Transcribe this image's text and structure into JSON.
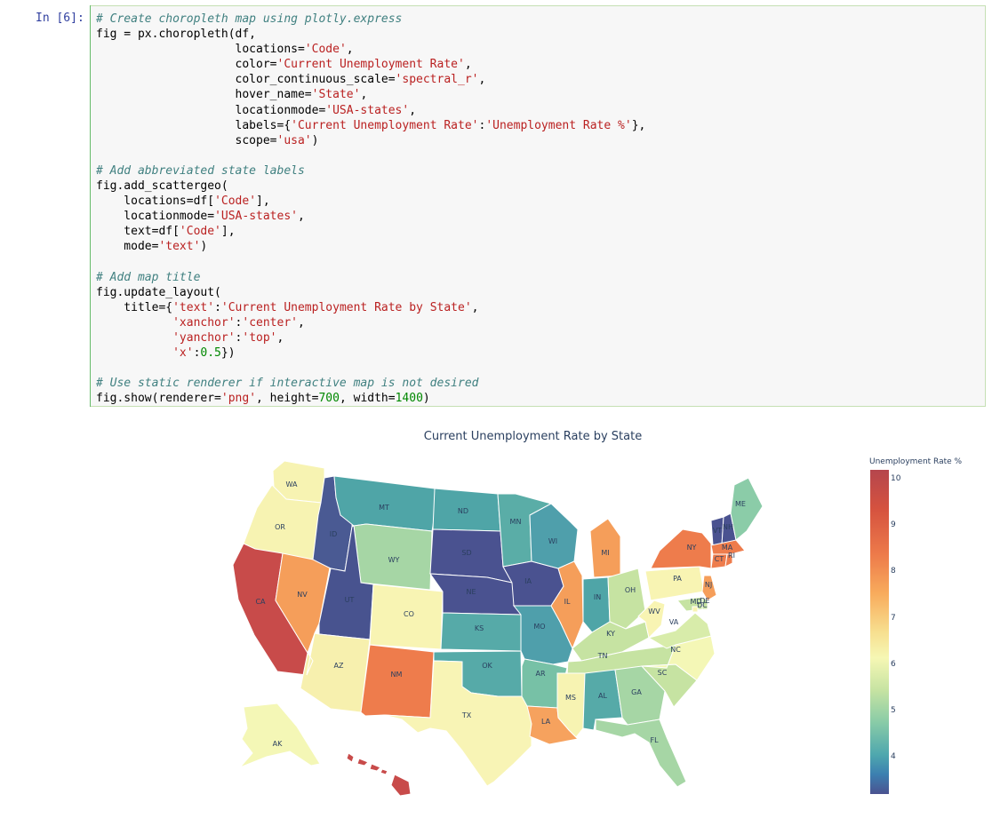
{
  "cell": {
    "prompt": "In [6]:",
    "lines": [
      {
        "t": "cm",
        "v": "# Create choropleth map using plotly.express"
      },
      {
        "t": "code",
        "v": "fig = px.choropleth(df,"
      },
      {
        "t": "code",
        "v": "                    locations='Code',"
      },
      {
        "t": "code",
        "v": "                    color='Current Unemployment Rate',"
      },
      {
        "t": "code",
        "v": "                    color_continuous_scale='spectral_r',"
      },
      {
        "t": "code",
        "v": "                    hover_name='State',"
      },
      {
        "t": "code",
        "v": "                    locationmode='USA-states',"
      },
      {
        "t": "code",
        "v": "                    labels={'Current Unemployment Rate':'Unemployment Rate %'},"
      },
      {
        "t": "code",
        "v": "                    scope='usa')"
      },
      {
        "t": "blank",
        "v": ""
      },
      {
        "t": "cm",
        "v": "# Add abbreviated state labels"
      },
      {
        "t": "code",
        "v": "fig.add_scattergeo("
      },
      {
        "t": "code",
        "v": "    locations=df['Code'],"
      },
      {
        "t": "code",
        "v": "    locationmode='USA-states',"
      },
      {
        "t": "code",
        "v": "    text=df['Code'],"
      },
      {
        "t": "code",
        "v": "    mode='text')"
      },
      {
        "t": "blank",
        "v": ""
      },
      {
        "t": "cm",
        "v": "# Add map title"
      },
      {
        "t": "code",
        "v": "fig.update_layout("
      },
      {
        "t": "code",
        "v": "    title={'text':'Current Unemployment Rate by State',"
      },
      {
        "t": "code",
        "v": "           'xanchor':'center',"
      },
      {
        "t": "code",
        "v": "           'yanchor':'top',"
      },
      {
        "t": "code",
        "v": "           'x':0.5})"
      },
      {
        "t": "blank",
        "v": ""
      },
      {
        "t": "cm",
        "v": "# Use static renderer if interactive map is not desired"
      },
      {
        "t": "code",
        "v": "fig.show(renderer='png', height=700, width=1400)"
      }
    ]
  },
  "map": {
    "title": "Current Unemployment Rate by State",
    "colorbar_title": "Unemployment Rate %",
    "colorbar_ticks": [
      "10",
      "9",
      "8",
      "7",
      "6",
      "5",
      "4"
    ],
    "states": [
      {
        "code": "WA",
        "color": "#f7f3b2"
      },
      {
        "code": "OR",
        "color": "#f7f3b2"
      },
      {
        "code": "CA",
        "color": "#c84b4a"
      },
      {
        "code": "NV",
        "color": "#f59e5a"
      },
      {
        "code": "ID",
        "color": "#4a5a93"
      },
      {
        "code": "MT",
        "color": "#4fa5a7"
      },
      {
        "code": "WY",
        "color": "#a6d6a5"
      },
      {
        "code": "UT",
        "color": "#48538f"
      },
      {
        "code": "CO",
        "color": "#f8f4b3"
      },
      {
        "code": "AZ",
        "color": "#f7f0ae"
      },
      {
        "code": "NM",
        "color": "#ee7c4c"
      },
      {
        "code": "ND",
        "color": "#4fa5a7"
      },
      {
        "code": "SD",
        "color": "#4a5290"
      },
      {
        "code": "NE",
        "color": "#4a5290"
      },
      {
        "code": "KS",
        "color": "#56aaa8"
      },
      {
        "code": "OK",
        "color": "#56aaa8"
      },
      {
        "code": "TX",
        "color": "#f8f4b5"
      },
      {
        "code": "MN",
        "color": "#5aada7"
      },
      {
        "code": "IA",
        "color": "#4a5290"
      },
      {
        "code": "MO",
        "color": "#4f9fab"
      },
      {
        "code": "AR",
        "color": "#77c1a6"
      },
      {
        "code": "LA",
        "color": "#f6a25e"
      },
      {
        "code": "WI",
        "color": "#4f9fab"
      },
      {
        "code": "IL",
        "color": "#f59e5a"
      },
      {
        "code": "MI",
        "color": "#f59e5a"
      },
      {
        "code": "IN",
        "color": "#4fa5a7"
      },
      {
        "code": "OH",
        "color": "#c6e3a2"
      },
      {
        "code": "KY",
        "color": "#c6e3a2"
      },
      {
        "code": "TN",
        "color": "#c6e3a2"
      },
      {
        "code": "MS",
        "color": "#f7f3b2"
      },
      {
        "code": "AL",
        "color": "#56aaa8"
      },
      {
        "code": "GA",
        "color": "#a6d6a5"
      },
      {
        "code": "FL",
        "color": "#a6d6a5"
      },
      {
        "code": "SC",
        "color": "#c6e3a2"
      },
      {
        "code": "NC",
        "color": "#f4f7b6"
      },
      {
        "code": "VA",
        "color": "#d8ecaa"
      },
      {
        "code": "WV",
        "color": "#f8f4b3"
      },
      {
        "code": "PA",
        "color": "#f8f4b3"
      },
      {
        "code": "NY",
        "color": "#ee7c4c"
      },
      {
        "code": "VT",
        "color": "#4a5290"
      },
      {
        "code": "NH",
        "color": "#4a5290"
      },
      {
        "code": "ME",
        "color": "#8bcca8"
      },
      {
        "code": "MA",
        "color": "#ee7c4c"
      },
      {
        "code": "CT",
        "color": "#ee7c4c"
      },
      {
        "code": "RI",
        "color": "#ee7c4c"
      },
      {
        "code": "NJ",
        "color": "#f59e5a"
      },
      {
        "code": "DE",
        "color": "#c6e3a2"
      },
      {
        "code": "MD",
        "color": "#c6e3a2"
      },
      {
        "code": "DC",
        "color": "#f8f4b3"
      },
      {
        "code": "AK",
        "color": "#f4f7b6"
      },
      {
        "code": "HI",
        "color": "#c84b4a"
      }
    ]
  }
}
